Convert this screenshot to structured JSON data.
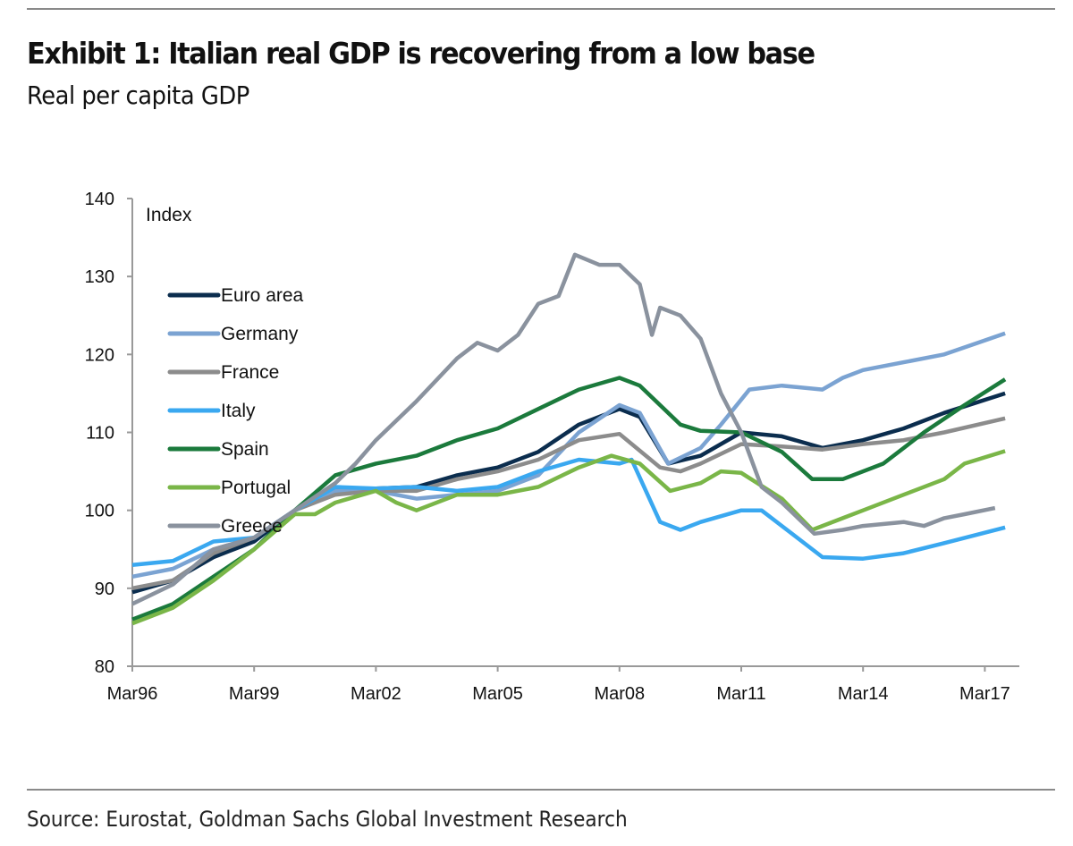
{
  "title": "Exhibit 1: Italian real GDP is recovering from a low base",
  "subtitle": "Real per capita GDP",
  "source": "Source: Eurostat, Goldman Sachs Global Investment Research",
  "chart_data": {
    "type": "line",
    "title": "Exhibit 1: Italian real GDP is recovering from a low base",
    "subtitle": "Real per capita GDP",
    "ylabel": "Index",
    "xlabel": "",
    "ylim": [
      80,
      140
    ],
    "yticks": [
      80,
      90,
      100,
      110,
      120,
      130,
      140
    ],
    "xlim": [
      1996.2,
      2018.2
    ],
    "xticks": [
      {
        "x": 1996.2,
        "label": "Mar96"
      },
      {
        "x": 1999.2,
        "label": "Mar99"
      },
      {
        "x": 2002.2,
        "label": "Mar02"
      },
      {
        "x": 2005.2,
        "label": "Mar05"
      },
      {
        "x": 2008.2,
        "label": "Mar08"
      },
      {
        "x": 2011.2,
        "label": "Mar11"
      },
      {
        "x": 2014.2,
        "label": "Mar14"
      },
      {
        "x": 2017.2,
        "label": "Mar17"
      }
    ],
    "legend_position": "left",
    "grid": false,
    "series": [
      {
        "name": "Euro area",
        "color": "#0b2d4e",
        "x": [
          1996.2,
          1997.2,
          1998.2,
          1999.2,
          2000.2,
          2001.2,
          2002.2,
          2003.2,
          2004.2,
          2005.2,
          2006.2,
          2007.2,
          2008.2,
          2008.7,
          2009.4,
          2010.2,
          2011.2,
          2012.2,
          2013.2,
          2014.2,
          2015.2,
          2016.2,
          2017.7
        ],
        "y": [
          89.5,
          91,
          94,
          96,
          100,
          102.5,
          102.8,
          103,
          104.5,
          105.5,
          107.5,
          111,
          113,
          112,
          106,
          107,
          110,
          109.5,
          108,
          109,
          110.5,
          112.5,
          115
        ]
      },
      {
        "name": "Germany",
        "color": "#7ba3d2",
        "x": [
          1996.2,
          1997.2,
          1998.2,
          1999.2,
          2000.2,
          2001.2,
          2002.2,
          2003.2,
          2004.2,
          2005.2,
          2006.2,
          2007.2,
          2008.2,
          2008.7,
          2009.4,
          2010.2,
          2010.7,
          2011.4,
          2012.2,
          2013.2,
          2013.7,
          2014.2,
          2015.2,
          2016.2,
          2017.7
        ],
        "y": [
          91.5,
          92.5,
          95,
          96.5,
          100,
          102.5,
          102.5,
          101.5,
          102,
          102.5,
          104.5,
          110,
          113.5,
          112.5,
          106,
          108,
          111,
          115.5,
          116,
          115.5,
          117,
          118,
          119,
          120,
          122.7
        ]
      },
      {
        "name": "France",
        "color": "#8c8c8c",
        "x": [
          1996.2,
          1997.2,
          1998.2,
          1999.2,
          2000.2,
          2001.2,
          2002.2,
          2003.2,
          2004.2,
          2005.2,
          2006.2,
          2007.2,
          2008.2,
          2009.2,
          2009.7,
          2010.2,
          2011.2,
          2012.2,
          2013.2,
          2014.2,
          2015.2,
          2016.2,
          2017.7
        ],
        "y": [
          90,
          91,
          94.5,
          96.5,
          100,
          102,
          102.5,
          102.5,
          104,
          105,
          106.5,
          109,
          109.8,
          105.5,
          105,
          106,
          108.5,
          108.2,
          107.8,
          108.5,
          109,
          110,
          111.8
        ]
      },
      {
        "name": "Italy",
        "color": "#3aa8f0",
        "x": [
          1996.2,
          1997.2,
          1998.2,
          1999.2,
          2000.2,
          2001.2,
          2002.2,
          2003.2,
          2004.2,
          2005.2,
          2006.2,
          2007.2,
          2008.2,
          2008.5,
          2009.2,
          2009.7,
          2010.2,
          2011.2,
          2011.7,
          2012.2,
          2013.2,
          2014.2,
          2015.2,
          2016.2,
          2017.7
        ],
        "y": [
          93,
          93.5,
          96,
          96.5,
          100,
          103,
          102.8,
          103,
          102.5,
          103,
          105,
          106.5,
          106,
          106.5,
          98.5,
          97.5,
          98.5,
          100,
          100,
          98,
          94,
          93.8,
          94.5,
          95.8,
          97.8
        ]
      },
      {
        "name": "Spain",
        "color": "#1b7a3c",
        "x": [
          1996.2,
          1997.2,
          1998.2,
          1999.2,
          2000.2,
          2001.2,
          2002.2,
          2003.2,
          2004.2,
          2005.2,
          2006.2,
          2007.2,
          2008.2,
          2008.7,
          2009.7,
          2010.2,
          2011.2,
          2012.2,
          2012.95,
          2013.7,
          2014.7,
          2015.7,
          2016.7,
          2017.7
        ],
        "y": [
          86,
          88,
          91.5,
          95,
          100,
          104.5,
          106,
          107,
          109,
          110.5,
          113,
          115.5,
          117,
          116,
          111,
          110.2,
          110,
          107.5,
          104,
          104,
          106,
          110,
          113.5,
          116.8
        ]
      },
      {
        "name": "Portugal",
        "color": "#7ab648",
        "x": [
          1996.2,
          1997.2,
          1998.2,
          1999.2,
          2000.2,
          2000.7,
          2001.2,
          2002.2,
          2002.7,
          2003.2,
          2004.2,
          2005.2,
          2006.2,
          2007.2,
          2008.0,
          2008.7,
          2009.45,
          2010.2,
          2010.7,
          2011.2,
          2012.2,
          2012.95,
          2013.7,
          2014.2,
          2015.2,
          2016.2,
          2016.7,
          2017.7
        ],
        "y": [
          85.5,
          87.5,
          91,
          95,
          99.5,
          99.5,
          101,
          102.5,
          101,
          100,
          102,
          102,
          103,
          105.5,
          107,
          106,
          102.5,
          103.5,
          105,
          104.8,
          101.5,
          97.5,
          99,
          100,
          102,
          104,
          106,
          107.6
        ]
      },
      {
        "name": "Greece",
        "color": "#8a929e",
        "x": [
          1996.2,
          1997.2,
          1998.2,
          1999.2,
          2000.2,
          2001.2,
          2001.7,
          2002.2,
          2003.2,
          2004.2,
          2004.7,
          2005.2,
          2005.7,
          2006.2,
          2006.7,
          2007.1,
          2007.7,
          2008.2,
          2008.7,
          2009.0,
          2009.2,
          2009.7,
          2010.2,
          2010.7,
          2011.2,
          2011.7,
          2012.2,
          2012.7,
          2013.0,
          2013.7,
          2014.2,
          2015.2,
          2015.7,
          2016.2,
          2016.7,
          2017.45
        ],
        "y": [
          88,
          90.5,
          95,
          96.5,
          100,
          103.5,
          106,
          109,
          114,
          119.5,
          121.5,
          120.5,
          122.5,
          126.5,
          127.5,
          132.8,
          131.5,
          131.5,
          129,
          122.5,
          126,
          125,
          122,
          115,
          110,
          103,
          101,
          98.5,
          97,
          97.5,
          98,
          98.5,
          98,
          99,
          99.5,
          100.3
        ]
      }
    ]
  }
}
